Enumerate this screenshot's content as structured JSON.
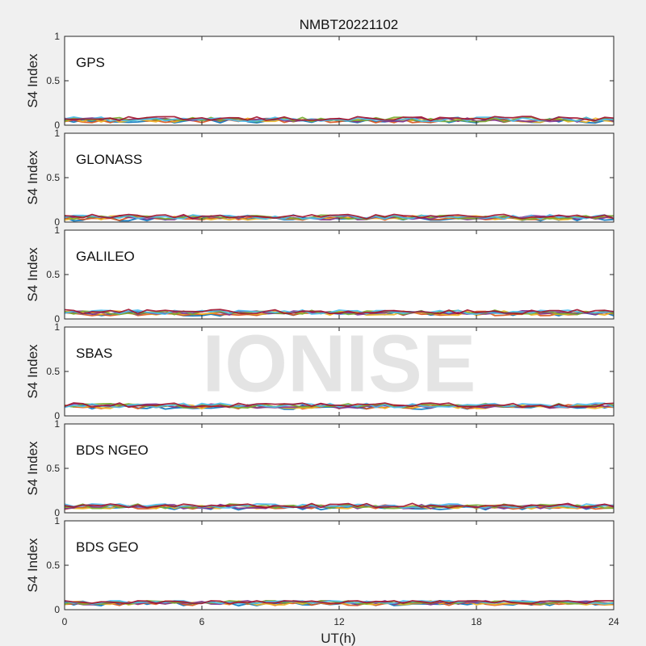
{
  "figure": {
    "title": "NMBT20221102",
    "xlabel": "UT(h)",
    "ylabel": "S4 Index",
    "watermark": "IONISE"
  },
  "colors": {
    "series": [
      "#0072bd",
      "#d95319",
      "#edb120",
      "#7e2f8e",
      "#77ac30",
      "#4dbeee",
      "#a2142f"
    ],
    "background": "#f0f0f0",
    "axes_background": "#ffffff",
    "watermark": "#e4e4e4"
  },
  "chart_data": [
    {
      "type": "scatter",
      "panel_label": "GPS",
      "ylim": [
        0,
        1
      ],
      "yticks": [
        0,
        0.5,
        1
      ],
      "ytick_labels": [
        "0",
        "0.5",
        "1"
      ],
      "xlim": [
        0,
        24
      ],
      "xticks": [
        0,
        6,
        12,
        18,
        24
      ],
      "xtick_labels": [
        "",
        "",
        "",
        "",
        ""
      ],
      "typical_s4": 0.06,
      "max_s4": 0.21,
      "grid": false
    },
    {
      "type": "scatter",
      "panel_label": "GLONASS",
      "ylim": [
        0,
        1
      ],
      "yticks": [
        0,
        0.5,
        1
      ],
      "ytick_labels": [
        "0",
        "0.5",
        "1"
      ],
      "xlim": [
        0,
        24
      ],
      "xticks": [
        0,
        6,
        12,
        18,
        24
      ],
      "xtick_labels": [
        "",
        "",
        "",
        "",
        ""
      ],
      "typical_s4": 0.05,
      "max_s4": 0.2,
      "grid": false
    },
    {
      "type": "scatter",
      "panel_label": "GALILEO",
      "ylim": [
        0,
        1
      ],
      "yticks": [
        0,
        0.5,
        1
      ],
      "ytick_labels": [
        "0",
        "0.5",
        "1"
      ],
      "xlim": [
        0,
        24
      ],
      "xticks": [
        0,
        6,
        12,
        18,
        24
      ],
      "xtick_labels": [
        "",
        "",
        "",
        "",
        ""
      ],
      "typical_s4": 0.07,
      "max_s4": 0.16,
      "grid": false
    },
    {
      "type": "scatter",
      "panel_label": "SBAS",
      "ylim": [
        0,
        1
      ],
      "yticks": [
        0,
        0.5,
        1
      ],
      "ytick_labels": [
        "0",
        "0.5",
        "1"
      ],
      "xlim": [
        0,
        24
      ],
      "xticks": [
        0,
        6,
        12,
        18,
        24
      ],
      "xtick_labels": [
        "",
        "",
        "",
        "",
        ""
      ],
      "typical_s4": 0.11,
      "max_s4": 0.18,
      "grid": false
    },
    {
      "type": "scatter",
      "panel_label": "BDS NGEO",
      "ylim": [
        0,
        1
      ],
      "yticks": [
        0,
        0.5,
        1
      ],
      "ytick_labels": [
        "0",
        "0.5",
        "1"
      ],
      "xlim": [
        0,
        24
      ],
      "xticks": [
        0,
        6,
        12,
        18,
        24
      ],
      "xtick_labels": [
        "",
        "",
        "",
        "",
        ""
      ],
      "typical_s4": 0.07,
      "max_s4": 0.13,
      "grid": false
    },
    {
      "type": "scatter",
      "panel_label": "BDS GEO",
      "ylim": [
        0,
        1
      ],
      "yticks": [
        0,
        0.5,
        1
      ],
      "ytick_labels": [
        "0",
        "0.5",
        "1"
      ],
      "xlim": [
        0,
        24
      ],
      "xticks": [
        0,
        6,
        12,
        18,
        24
      ],
      "xtick_labels": [
        "0",
        "6",
        "12",
        "18",
        "24"
      ],
      "typical_s4": 0.08,
      "max_s4": 0.1,
      "grid": false
    }
  ]
}
